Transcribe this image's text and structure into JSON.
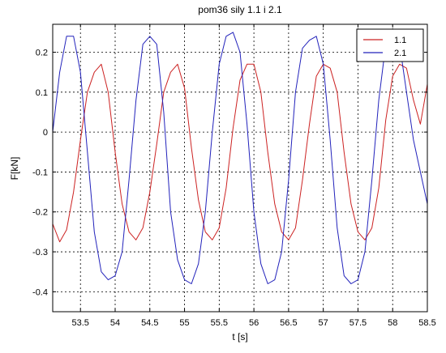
{
  "chart_data": {
    "type": "line",
    "title": "pom36 sily 1.1 i 2.1",
    "xlabel": "t [s]",
    "ylabel": "F[kN]",
    "xlim": [
      53.1,
      58.5
    ],
    "ylim": [
      -0.45,
      0.27
    ],
    "xticks": [
      53.5,
      54,
      54.5,
      55,
      55.5,
      56,
      56.5,
      57,
      57.5,
      58,
      58.5
    ],
    "xtick_labels": [
      "53.5",
      "54",
      "54.5",
      "55",
      "55.5",
      "56",
      "56.5",
      "57",
      "57.5",
      "58",
      "58.5"
    ],
    "yticks": [
      0.2,
      0.1,
      0,
      -0.1,
      -0.2,
      -0.3,
      -0.4
    ],
    "ytick_labels": [
      "0.2",
      "0.1",
      "0",
      "-0.1",
      "-0.2",
      "-0.3",
      "-0.4"
    ],
    "grid": true,
    "legend_position": "top-right",
    "series": [
      {
        "name": "1.1",
        "color": "#cc2222",
        "x": [
          53.1,
          53.2,
          53.3,
          53.4,
          53.5,
          53.6,
          53.7,
          53.8,
          53.9,
          54.0,
          54.1,
          54.2,
          54.3,
          54.4,
          54.5,
          54.6,
          54.7,
          54.8,
          54.9,
          55.0,
          55.1,
          55.2,
          55.3,
          55.4,
          55.5,
          55.6,
          55.7,
          55.8,
          55.9,
          56.0,
          56.1,
          56.2,
          56.3,
          56.4,
          56.5,
          56.6,
          56.7,
          56.8,
          56.9,
          57.0,
          57.1,
          57.2,
          57.3,
          57.4,
          57.5,
          57.6,
          57.7,
          57.8,
          57.9,
          58.0,
          58.1,
          58.2,
          58.3,
          58.4,
          58.5
        ],
        "values": [
          -0.23,
          -0.275,
          -0.245,
          -0.15,
          -0.02,
          0.1,
          0.15,
          0.17,
          0.1,
          -0.05,
          -0.18,
          -0.25,
          -0.27,
          -0.24,
          -0.15,
          -0.03,
          0.1,
          0.15,
          0.17,
          0.11,
          -0.04,
          -0.17,
          -0.25,
          -0.27,
          -0.24,
          -0.14,
          0.01,
          0.13,
          0.17,
          0.17,
          0.1,
          -0.05,
          -0.18,
          -0.25,
          -0.27,
          -0.24,
          -0.12,
          0.02,
          0.14,
          0.17,
          0.16,
          0.1,
          -0.05,
          -0.18,
          -0.25,
          -0.27,
          -0.24,
          -0.14,
          0.03,
          0.14,
          0.17,
          0.16,
          0.08,
          0.02,
          0.12
        ]
      },
      {
        "name": "2.1",
        "color": "#2222bb",
        "x": [
          53.1,
          53.2,
          53.3,
          53.4,
          53.5,
          53.6,
          53.7,
          53.8,
          53.9,
          54.0,
          54.1,
          54.2,
          54.3,
          54.4,
          54.5,
          54.6,
          54.7,
          54.8,
          54.9,
          55.0,
          55.1,
          55.2,
          55.3,
          55.4,
          55.5,
          55.6,
          55.7,
          55.8,
          55.9,
          56.0,
          56.1,
          56.2,
          56.3,
          56.4,
          56.5,
          56.6,
          56.7,
          56.8,
          56.9,
          57.0,
          57.1,
          57.2,
          57.3,
          57.4,
          57.5,
          57.6,
          57.7,
          57.8,
          57.9,
          58.0,
          58.1,
          58.2,
          58.3,
          58.4,
          58.5
        ],
        "values": [
          0.0,
          0.15,
          0.24,
          0.24,
          0.15,
          -0.05,
          -0.25,
          -0.35,
          -0.37,
          -0.36,
          -0.3,
          -0.12,
          0.08,
          0.22,
          0.24,
          0.22,
          0.05,
          -0.2,
          -0.32,
          -0.37,
          -0.38,
          -0.33,
          -0.2,
          0.0,
          0.17,
          0.24,
          0.25,
          0.2,
          0.02,
          -0.2,
          -0.33,
          -0.38,
          -0.37,
          -0.3,
          -0.12,
          0.1,
          0.21,
          0.23,
          0.24,
          0.17,
          -0.02,
          -0.24,
          -0.36,
          -0.38,
          -0.37,
          -0.3,
          -0.12,
          0.08,
          0.22,
          0.24,
          0.22,
          0.1,
          -0.02,
          -0.1,
          -0.18
        ]
      }
    ]
  }
}
